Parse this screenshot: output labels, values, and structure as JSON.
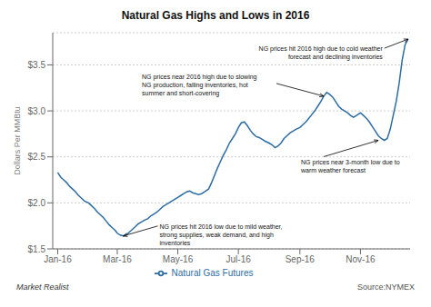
{
  "chart_data": {
    "type": "line",
    "title": "Natural Gas Highs and Lows in 2016",
    "ylabel": "Dollars Per MMBtu",
    "x": [
      0,
      3,
      6,
      9,
      12,
      15,
      18,
      21,
      24,
      27,
      31,
      34,
      37,
      40,
      43,
      46,
      49,
      52,
      55,
      58,
      60,
      63,
      66,
      69,
      72,
      75,
      78,
      81,
      84,
      87,
      91,
      94,
      97,
      100,
      103,
      106,
      109,
      112,
      115,
      118,
      121,
      124,
      127,
      130,
      133,
      136,
      139,
      142,
      145,
      148,
      152,
      155,
      158,
      161,
      164,
      167,
      170,
      173,
      176,
      179,
      182,
      185,
      188,
      191,
      194,
      197,
      200,
      203,
      206,
      209,
      213,
      216,
      219,
      222,
      225,
      228,
      231,
      234,
      237,
      240,
      244,
      247,
      250,
      253,
      256,
      259,
      262,
      265,
      268,
      271,
      274,
      277,
      280,
      283,
      286,
      289,
      292,
      295,
      298,
      301,
      305,
      308,
      311,
      314,
      317,
      320,
      323,
      326,
      329,
      332,
      335,
      338,
      341,
      344,
      347,
      350,
      353
    ],
    "series": [
      {
        "name": "Natural Gas Futures",
        "color": "#2E6DA4",
        "values": [
          2.33,
          2.28,
          2.25,
          2.22,
          2.18,
          2.15,
          2.12,
          2.08,
          2.05,
          2.02,
          2.0,
          1.97,
          1.94,
          1.9,
          1.87,
          1.84,
          1.8,
          1.76,
          1.73,
          1.7,
          1.67,
          1.65,
          1.64,
          1.65,
          1.68,
          1.71,
          1.74,
          1.77,
          1.79,
          1.81,
          1.83,
          1.86,
          1.88,
          1.9,
          1.93,
          1.96,
          1.98,
          2.0,
          2.02,
          2.04,
          2.06,
          2.08,
          2.1,
          2.12,
          2.13,
          2.11,
          2.1,
          2.09,
          2.1,
          2.12,
          2.15,
          2.22,
          2.3,
          2.38,
          2.45,
          2.52,
          2.58,
          2.65,
          2.7,
          2.75,
          2.82,
          2.87,
          2.88,
          2.84,
          2.79,
          2.75,
          2.72,
          2.71,
          2.69,
          2.67,
          2.65,
          2.63,
          2.6,
          2.62,
          2.65,
          2.7,
          2.73,
          2.76,
          2.78,
          2.8,
          2.82,
          2.85,
          2.88,
          2.92,
          2.96,
          3.0,
          3.05,
          3.1,
          3.16,
          3.2,
          3.18,
          3.15,
          3.1,
          3.05,
          3.02,
          3.0,
          2.98,
          2.95,
          2.93,
          2.95,
          2.98,
          2.95,
          2.92,
          2.88,
          2.83,
          2.78,
          2.73,
          2.7,
          2.68,
          2.7,
          2.8,
          2.95,
          3.1,
          3.3,
          3.55,
          3.72,
          3.78
        ]
      }
    ],
    "xlim": [
      -5,
      355
    ],
    "xticks": [
      {
        "value": 0,
        "label": "Jan-16"
      },
      {
        "value": 60,
        "label": "Mar-16"
      },
      {
        "value": 121,
        "label": "May-16"
      },
      {
        "value": 182,
        "label": "Jul-16"
      },
      {
        "value": 244,
        "label": "Sep-16"
      },
      {
        "value": 305,
        "label": "Nov-16"
      }
    ],
    "ylim": [
      1.5,
      3.85
    ],
    "yticks": [
      {
        "value": 1.5,
        "label": "$1.5"
      },
      {
        "value": 2.0,
        "label": "$2.0"
      },
      {
        "value": 2.5,
        "label": "$2.5"
      },
      {
        "value": 3.0,
        "label": "$3.0"
      },
      {
        "value": 3.5,
        "label": "$3.5"
      }
    ],
    "grid": true,
    "legend": "bottom",
    "annotations": [
      {
        "text": "NG prices hit 2016 high due to cold weather\nforecast and declining inventories",
        "x": 353,
        "y": 3.78
      },
      {
        "text": "NG prices near 2016 high due to slowing\nNG production, falling inventories, hot\nsummer and short-covering",
        "x": 268,
        "y": 3.16
      },
      {
        "text": "NG prices hit 2016 low due to mild weather,\nstrong supplies, weak demand, and high\ninventories",
        "x": 66,
        "y": 1.64
      },
      {
        "text": "NG prices near 3-month low due to\nwarm weather forecast",
        "x": 323,
        "y": 2.68
      }
    ],
    "footer": [
      "Market Realist",
      "Source:NYMEX"
    ]
  }
}
